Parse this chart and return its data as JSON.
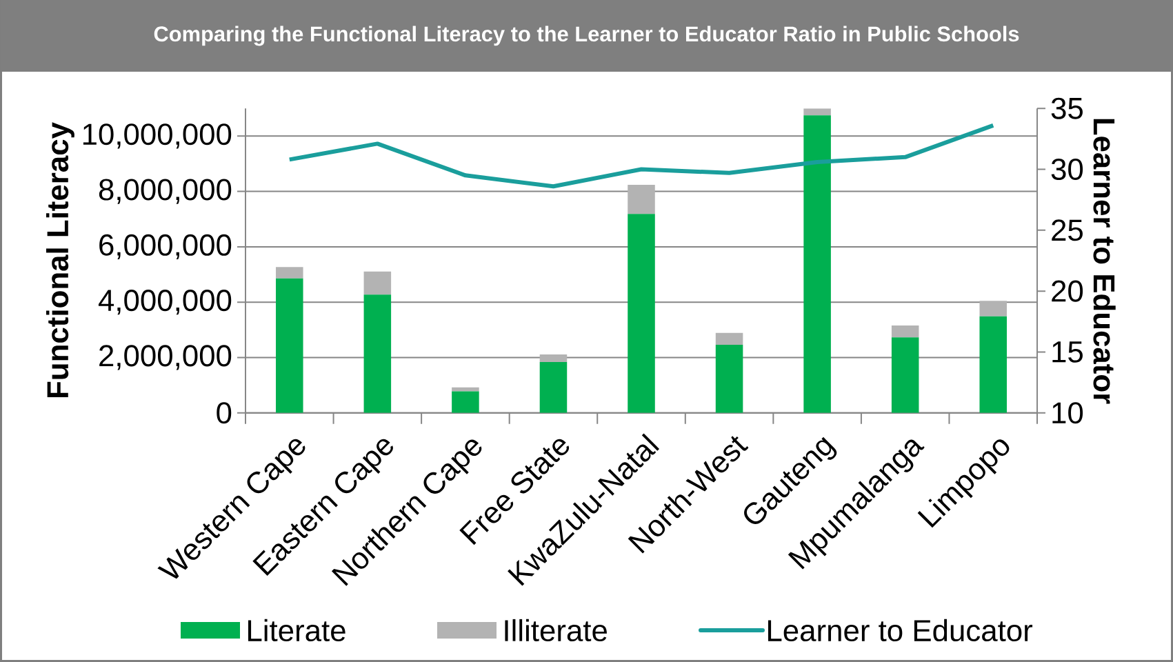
{
  "chart_data": {
    "type": "bar",
    "title": "Comparing the Functional Literacy to the Learner to Educator Ratio in Public Schools",
    "ylabel": "Functional Literacy",
    "y2label": "Learner to Educator",
    "categories": [
      "Western Cape",
      "Eastern Cape",
      "Northern Cape",
      "Free State",
      "KwaZulu-Natal",
      "North-West",
      "Gauteng",
      "Mpumalanga",
      "Limpopo"
    ],
    "stacked": true,
    "grid": "y",
    "legend": "bottom",
    "series": [
      {
        "name": "Literate",
        "color": "#00b050",
        "values": [
          4860000,
          4270000,
          780000,
          1840000,
          7190000,
          2460000,
          10750000,
          2730000,
          3490000
        ]
      },
      {
        "name": "Illiterate",
        "color": "#b3b3b3",
        "values": [
          410000,
          840000,
          140000,
          270000,
          1050000,
          430000,
          250000,
          430000,
          560000
        ]
      },
      {
        "name": "Learner to Educator",
        "type": "line",
        "axis": "y2",
        "color": "#1a9e9c",
        "values": [
          30.8,
          32.1,
          29.5,
          28.6,
          30.0,
          29.7,
          30.6,
          31.0,
          33.6
        ]
      }
    ],
    "ylim": [
      0,
      11000000
    ],
    "yticks": [
      {
        "value": 0,
        "label": "0"
      },
      {
        "value": 2000000,
        "label": "2,000,000"
      },
      {
        "value": 4000000,
        "label": "4,000,000"
      },
      {
        "value": 6000000,
        "label": "6,000,000"
      },
      {
        "value": 8000000,
        "label": "8,000,000"
      },
      {
        "value": 10000000,
        "label": "10,000,000"
      }
    ],
    "y2lim": [
      10,
      35
    ],
    "y2ticks": [
      10,
      15,
      20,
      25,
      30,
      35
    ]
  }
}
